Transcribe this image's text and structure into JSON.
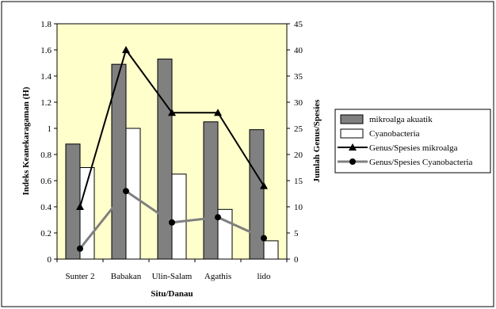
{
  "chart_data": {
    "type": "bar",
    "xlabel": "Situ/Danau",
    "ylabel": "Indeks Keanekaragaman (H)",
    "y2label": "Jumlah Genus/Spesies",
    "categories": [
      "Sunter 2",
      "Babakan",
      "Ulin-Salam",
      "Agathis",
      "lido"
    ],
    "ylim": [
      0,
      1.8
    ],
    "y2lim": [
      0,
      45
    ],
    "yticks": [
      "0",
      "0.2",
      "0.4",
      "0.6",
      "0.8",
      "1",
      "1.2",
      "1.4",
      "1.6",
      "1.8"
    ],
    "y2ticks": [
      "0",
      "5",
      "10",
      "15",
      "20",
      "25",
      "30",
      "35",
      "40",
      "45"
    ],
    "plot_background": "#ffffcc",
    "legend_position": "right",
    "bar_series": [
      {
        "name": "mikroalga akuatik",
        "axis": "left",
        "color": "#808080",
        "values": [
          0.88,
          1.49,
          1.53,
          1.05,
          0.99
        ]
      },
      {
        "name": "Cyanobacteria",
        "axis": "left",
        "color": "#ffffff",
        "values": [
          0.7,
          1.0,
          0.65,
          0.38,
          0.14
        ]
      }
    ],
    "line_series": [
      {
        "name": "Genus/Spesies mikroalga",
        "axis": "right",
        "color": "#000000",
        "marker": "triangle",
        "values": [
          10,
          40,
          28,
          28,
          14
        ]
      },
      {
        "name": "Genus/Spesies Cyanobacteria",
        "axis": "right",
        "color": "#808080",
        "marker": "circle",
        "values": [
          2,
          13,
          7,
          8,
          4
        ]
      }
    ]
  }
}
